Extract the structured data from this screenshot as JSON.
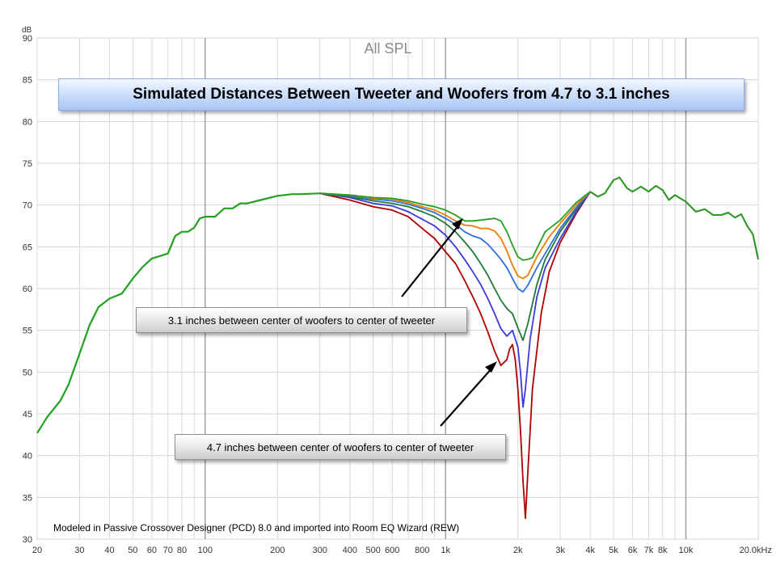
{
  "chart_data": {
    "type": "line",
    "title": "All SPL",
    "ylabel": "dB",
    "xlabel": "kHz",
    "x_scale": "log",
    "xlim": [
      20,
      20000
    ],
    "ylim": [
      30,
      90
    ],
    "y_ticks": [
      30,
      35,
      40,
      45,
      50,
      55,
      60,
      65,
      70,
      75,
      80,
      85,
      90
    ],
    "x_ticks": [
      {
        "v": 20,
        "label": "20"
      },
      {
        "v": 30,
        "label": "30"
      },
      {
        "v": 40,
        "label": "40"
      },
      {
        "v": 50,
        "label": "50"
      },
      {
        "v": 60,
        "label": "60"
      },
      {
        "v": 70,
        "label": "70"
      },
      {
        "v": 80,
        "label": "80"
      },
      {
        "v": 100,
        "label": "100"
      },
      {
        "v": 200,
        "label": "200"
      },
      {
        "v": 300,
        "label": "300"
      },
      {
        "v": 400,
        "label": "400"
      },
      {
        "v": 500,
        "label": "500"
      },
      {
        "v": 600,
        "label": "600"
      },
      {
        "v": 800,
        "label": "800"
      },
      {
        "v": 1000,
        "label": "1k"
      },
      {
        "v": 2000,
        "label": "2k"
      },
      {
        "v": 3000,
        "label": "3k"
      },
      {
        "v": 4000,
        "label": "4k"
      },
      {
        "v": 5000,
        "label": "5k"
      },
      {
        "v": 6000,
        "label": "6k"
      },
      {
        "v": 7000,
        "label": "7k"
      },
      {
        "v": 8000,
        "label": "8k"
      },
      {
        "v": 10000,
        "label": "10k"
      },
      {
        "v": 20000,
        "label": "20.0kHz"
      }
    ],
    "common": [
      [
        20,
        42.7
      ],
      [
        22,
        44.6
      ],
      [
        25,
        46.6
      ],
      [
        27,
        48.5
      ],
      [
        30,
        52.2
      ],
      [
        33,
        55.6
      ],
      [
        36,
        57.8
      ],
      [
        40,
        58.8
      ],
      [
        45,
        59.4
      ],
      [
        50,
        61.2
      ],
      [
        55,
        62.6
      ],
      [
        60,
        63.6
      ],
      [
        65,
        63.9
      ],
      [
        70,
        64.2
      ],
      [
        75,
        66.3
      ],
      [
        80,
        66.8
      ],
      [
        85,
        66.8
      ],
      [
        90,
        67.3
      ],
      [
        95,
        68.4
      ],
      [
        100,
        68.6
      ],
      [
        110,
        68.6
      ],
      [
        120,
        69.6
      ],
      [
        130,
        69.6
      ],
      [
        140,
        70.2
      ],
      [
        150,
        70.2
      ],
      [
        170,
        70.6
      ],
      [
        200,
        71.1
      ],
      [
        230,
        71.3
      ],
      [
        250,
        71.3
      ],
      [
        300,
        71.4
      ]
    ],
    "high": [
      [
        4000,
        71.6
      ],
      [
        4300,
        71.0
      ],
      [
        4600,
        71.4
      ],
      [
        5000,
        73.0
      ],
      [
        5300,
        73.3
      ],
      [
        5700,
        72.0
      ],
      [
        6000,
        71.6
      ],
      [
        6500,
        72.2
      ],
      [
        7000,
        71.6
      ],
      [
        7500,
        72.3
      ],
      [
        8000,
        71.8
      ],
      [
        8500,
        70.6
      ],
      [
        9000,
        71.2
      ],
      [
        10000,
        70.4
      ],
      [
        11000,
        69.2
      ],
      [
        12000,
        69.5
      ],
      [
        13000,
        68.8
      ],
      [
        14000,
        68.8
      ],
      [
        15000,
        69.1
      ],
      [
        16000,
        68.5
      ],
      [
        17000,
        68.9
      ],
      [
        18000,
        67.5
      ],
      [
        19000,
        66.5
      ],
      [
        20000,
        63.5
      ]
    ],
    "series": [
      {
        "name": "4.7 inches",
        "color": "#b00000",
        "points": [
          [
            300,
            71.4
          ],
          [
            400,
            70.6
          ],
          [
            500,
            69.8
          ],
          [
            600,
            69.4
          ],
          [
            700,
            68.6
          ],
          [
            800,
            67.2
          ],
          [
            900,
            66.0
          ],
          [
            1000,
            64.4
          ],
          [
            1100,
            63.0
          ],
          [
            1200,
            61.0
          ],
          [
            1300,
            59.0
          ],
          [
            1400,
            57.0
          ],
          [
            1500,
            54.8
          ],
          [
            1600,
            52.5
          ],
          [
            1700,
            50.8
          ],
          [
            1800,
            51.5
          ],
          [
            1850,
            52.8
          ],
          [
            1900,
            53.3
          ],
          [
            1950,
            51.5
          ],
          [
            2000,
            48.0
          ],
          [
            2050,
            43.0
          ],
          [
            2100,
            37.0
          ],
          [
            2150,
            32.5
          ],
          [
            2200,
            38.0
          ],
          [
            2300,
            48.0
          ],
          [
            2500,
            57.0
          ],
          [
            2700,
            62.0
          ],
          [
            3000,
            65.5
          ],
          [
            3500,
            69.0
          ],
          [
            4000,
            71.6
          ]
        ]
      },
      {
        "name": "blue",
        "color": "#3b3bdc",
        "points": [
          [
            300,
            71.4
          ],
          [
            400,
            70.9
          ],
          [
            500,
            70.2
          ],
          [
            600,
            69.9
          ],
          [
            700,
            69.2
          ],
          [
            800,
            68.3
          ],
          [
            900,
            67.5
          ],
          [
            1000,
            66.4
          ],
          [
            1100,
            65.0
          ],
          [
            1200,
            63.5
          ],
          [
            1300,
            62.0
          ],
          [
            1400,
            60.5
          ],
          [
            1500,
            58.8
          ],
          [
            1600,
            57.0
          ],
          [
            1700,
            55.2
          ],
          [
            1800,
            54.3
          ],
          [
            1900,
            55.0
          ],
          [
            2000,
            53.0
          ],
          [
            2050,
            50.0
          ],
          [
            2100,
            45.8
          ],
          [
            2150,
            48.0
          ],
          [
            2250,
            54.0
          ],
          [
            2400,
            59.0
          ],
          [
            2600,
            62.5
          ],
          [
            3000,
            66.0
          ],
          [
            3500,
            69.2
          ],
          [
            4000,
            71.6
          ]
        ]
      },
      {
        "name": "dark green",
        "color": "#1f7a3a",
        "points": [
          [
            300,
            71.4
          ],
          [
            400,
            71.0
          ],
          [
            500,
            70.5
          ],
          [
            600,
            70.2
          ],
          [
            700,
            69.8
          ],
          [
            800,
            69.2
          ],
          [
            900,
            68.6
          ],
          [
            1000,
            67.8
          ],
          [
            1100,
            66.8
          ],
          [
            1200,
            65.6
          ],
          [
            1300,
            64.4
          ],
          [
            1400,
            63.0
          ],
          [
            1500,
            61.6
          ],
          [
            1600,
            60.0
          ],
          [
            1700,
            58.6
          ],
          [
            1800,
            57.6
          ],
          [
            1900,
            57.0
          ],
          [
            2000,
            55.3
          ],
          [
            2100,
            53.8
          ],
          [
            2200,
            55.8
          ],
          [
            2400,
            60.5
          ],
          [
            2600,
            63.5
          ],
          [
            3000,
            66.8
          ],
          [
            3500,
            69.5
          ],
          [
            4000,
            71.6
          ]
        ]
      },
      {
        "name": "blue 2",
        "color": "#2f6fe0",
        "points": [
          [
            300,
            71.4
          ],
          [
            400,
            71.1
          ],
          [
            500,
            70.7
          ],
          [
            600,
            70.5
          ],
          [
            700,
            70.1
          ],
          [
            800,
            69.6
          ],
          [
            900,
            69.1
          ],
          [
            1000,
            68.4
          ],
          [
            1100,
            67.7
          ],
          [
            1200,
            66.8
          ],
          [
            1300,
            66.3
          ],
          [
            1400,
            66.0
          ],
          [
            1500,
            65.3
          ],
          [
            1600,
            64.4
          ],
          [
            1700,
            63.5
          ],
          [
            1800,
            62.5
          ],
          [
            1900,
            61.2
          ],
          [
            2000,
            60.0
          ],
          [
            2100,
            59.6
          ],
          [
            2200,
            60.4
          ],
          [
            2400,
            62.5
          ],
          [
            2700,
            65.0
          ],
          [
            3000,
            67.2
          ],
          [
            3500,
            69.7
          ],
          [
            4000,
            71.6
          ]
        ]
      },
      {
        "name": "orange",
        "color": "#f07d00",
        "points": [
          [
            300,
            71.4
          ],
          [
            400,
            71.2
          ],
          [
            500,
            70.8
          ],
          [
            600,
            70.7
          ],
          [
            700,
            70.3
          ],
          [
            800,
            69.8
          ],
          [
            900,
            69.4
          ],
          [
            1000,
            68.8
          ],
          [
            1100,
            68.1
          ],
          [
            1200,
            67.6
          ],
          [
            1300,
            67.5
          ],
          [
            1400,
            67.2
          ],
          [
            1500,
            67.2
          ],
          [
            1600,
            66.9
          ],
          [
            1700,
            66.0
          ],
          [
            1800,
            64.5
          ],
          [
            1900,
            62.8
          ],
          [
            2000,
            61.5
          ],
          [
            2100,
            61.2
          ],
          [
            2200,
            61.6
          ],
          [
            2400,
            63.8
          ],
          [
            2700,
            66.2
          ],
          [
            3000,
            67.8
          ],
          [
            3500,
            70.0
          ],
          [
            4000,
            71.6
          ]
        ]
      },
      {
        "name": "3.1 inches",
        "color": "#22a022",
        "points": [
          [
            300,
            71.4
          ],
          [
            400,
            71.2
          ],
          [
            500,
            70.9
          ],
          [
            600,
            70.8
          ],
          [
            700,
            70.5
          ],
          [
            800,
            70.1
          ],
          [
            900,
            69.8
          ],
          [
            1000,
            69.4
          ],
          [
            1100,
            68.8
          ],
          [
            1200,
            68.1
          ],
          [
            1300,
            68.1
          ],
          [
            1400,
            68.2
          ],
          [
            1500,
            68.3
          ],
          [
            1600,
            68.4
          ],
          [
            1700,
            68.1
          ],
          [
            1800,
            66.8
          ],
          [
            1900,
            65.2
          ],
          [
            2000,
            63.8
          ],
          [
            2100,
            63.4
          ],
          [
            2200,
            63.5
          ],
          [
            2300,
            63.7
          ],
          [
            2400,
            64.8
          ],
          [
            2600,
            66.8
          ],
          [
            3000,
            68.2
          ],
          [
            3500,
            70.3
          ],
          [
            4000,
            71.6
          ]
        ]
      }
    ],
    "banner": "Simulated Distances Between Tweeter and Woofers from 4.7  to 3.1 inches",
    "callouts": [
      "3.1 inches between center of woofers to center of tweeter",
      "4.7 inches between center of woofers to center of tweeter"
    ],
    "footnote": "Modeled in Passive Crossover  Designer (PCD) 8.0 and imported into Room EQ Wizard (REW)"
  }
}
